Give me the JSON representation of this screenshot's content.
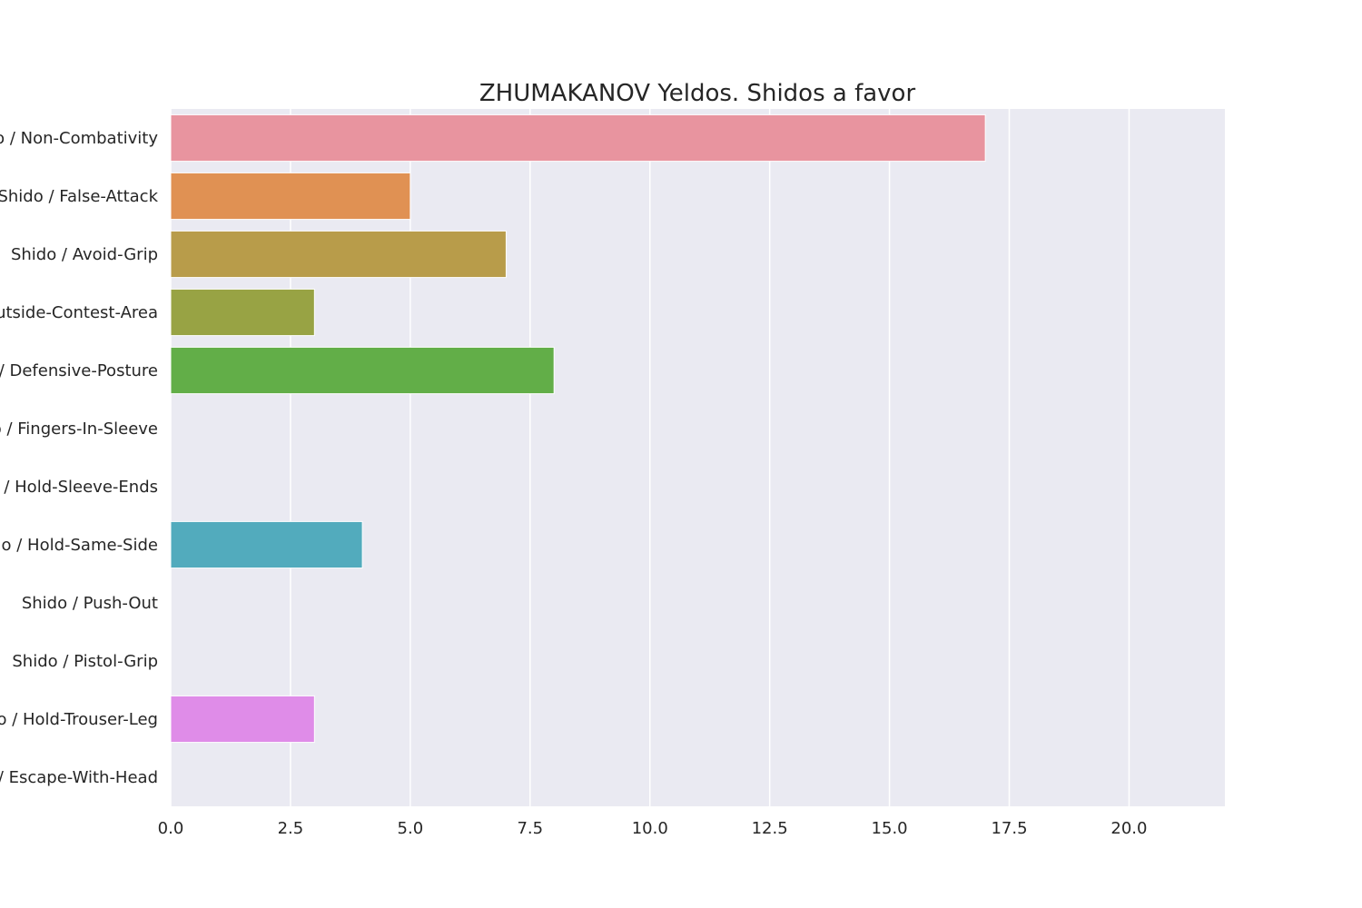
{
  "chart_data": {
    "type": "bar",
    "orientation": "horizontal",
    "title": "ZHUMAKANOV Yeldos. Shidos a favor",
    "xlabel": "",
    "ylabel": "",
    "xlim": [
      0,
      22
    ],
    "xticks": [
      "0.0",
      "2.5",
      "5.0",
      "7.5",
      "10.0",
      "12.5",
      "15.0",
      "17.5",
      "20.0"
    ],
    "xtick_values": [
      0,
      2.5,
      5,
      7.5,
      10,
      12.5,
      15,
      17.5,
      20
    ],
    "grid": true,
    "background": "#eaeaf2",
    "categories": [
      "Shido / Non-Combativity",
      "Shido / False-Attack",
      "Shido / Avoid-Grip",
      "Shido / Outside-Contest-Area",
      "Shido / Defensive-Posture",
      "Shido / Fingers-In-Sleeve",
      "Shido / Hold-Sleeve-Ends",
      "Shido / Hold-Same-Side",
      "Shido / Push-Out",
      "Shido / Pistol-Grip",
      "Shido / Hold-Trouser-Leg",
      "Shido / Escape-With-Head"
    ],
    "values": [
      17,
      5,
      7,
      3,
      8,
      0,
      0,
      4,
      0,
      0,
      3,
      0
    ],
    "colors": [
      "#e8949f",
      "#e09153",
      "#b89c4a",
      "#98a344",
      "#62ae48",
      "#4db58a",
      "#4fae9f",
      "#52abbd",
      "#68a7e0",
      "#a59ae8",
      "#df8ce8",
      "#e88dc0"
    ]
  }
}
